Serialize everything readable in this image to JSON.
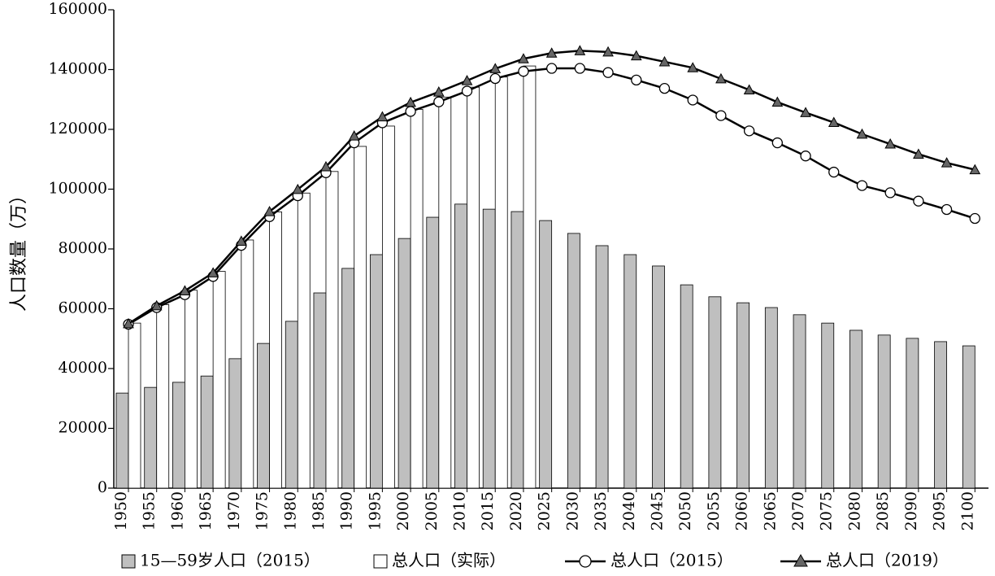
{
  "chart_data": {
    "type": "bar",
    "y_label": "人口数量（万）",
    "categories": [
      "1950",
      "1955",
      "1960",
      "1965",
      "1970",
      "1975",
      "1980",
      "1985",
      "1990",
      "1995",
      "2000",
      "2005",
      "2010",
      "2015",
      "2020",
      "2025",
      "2030",
      "2035",
      "2040",
      "2045",
      "2050",
      "2055",
      "2060",
      "2065",
      "2070",
      "2075",
      "2080",
      "2085",
      "2090",
      "2095",
      "2100"
    ],
    "ylim": [
      0,
      160000
    ],
    "yticks": [
      0,
      20000,
      40000,
      60000,
      80000,
      100000,
      120000,
      140000,
      160000
    ],
    "grid": false,
    "legend": "bottom",
    "series": [
      {
        "name": "15—59岁人口（2015）",
        "type": "bar",
        "color": "#bfbfbf",
        "values": [
          31800,
          33700,
          35400,
          37500,
          43300,
          48400,
          55800,
          65300,
          73500,
          78100,
          83500,
          90600,
          95000,
          93300,
          92500,
          89500,
          85200,
          81100,
          78100,
          74300,
          68000,
          64000,
          62000,
          60400,
          58000,
          55200,
          52800,
          51200,
          50100,
          49000,
          47600
        ]
      },
      {
        "name": "总人口（实际）",
        "type": "bar",
        "color": "#ffffff",
        "values": [
          55200,
          61400,
          66200,
          72500,
          83000,
          92400,
          98700,
          105900,
          114300,
          121100,
          126700,
          130800,
          134100,
          137500,
          141200,
          null,
          null,
          null,
          null,
          null,
          null,
          null,
          null,
          null,
          null,
          null,
          null,
          null,
          null,
          null,
          null
        ]
      },
      {
        "name": "总人口（2015）",
        "type": "line",
        "marker": "circle",
        "color": "#000000",
        "values": [
          54800,
          60400,
          64700,
          70800,
          81200,
          90800,
          97800,
          105500,
          115500,
          122200,
          126000,
          129200,
          132800,
          137000,
          139400,
          140400,
          140400,
          139000,
          136500,
          133700,
          129800,
          124600,
          119500,
          115500,
          111100,
          105700,
          101200,
          98800,
          96000,
          93200,
          90200
        ]
      },
      {
        "name": "总人口（2019）",
        "type": "line",
        "marker": "triangle",
        "color": "#000000",
        "values": [
          55000,
          61000,
          66000,
          72000,
          82600,
          92500,
          99900,
          107500,
          117800,
          124200,
          129000,
          132500,
          136300,
          140300,
          143600,
          145500,
          146300,
          145900,
          144600,
          142600,
          140600,
          136900,
          133200,
          129100,
          125600,
          122300,
          118400,
          115100,
          111700,
          108800,
          106500
        ]
      }
    ]
  }
}
